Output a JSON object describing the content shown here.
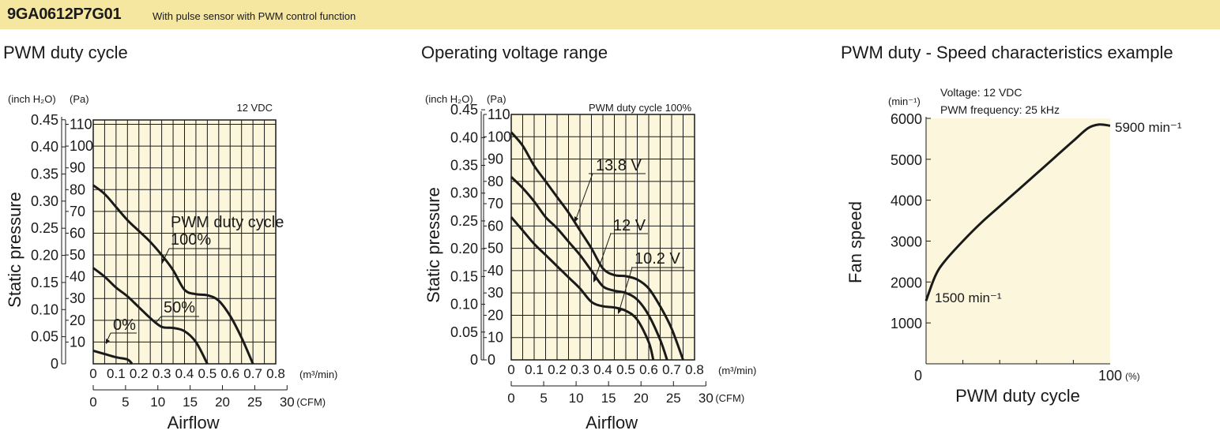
{
  "header": {
    "model": "9GA0612P7G01",
    "subtitle": "With pulse sensor with PWM control function",
    "color": "#f6e7a0"
  },
  "chart_data": [
    {
      "type": "line",
      "title": "PWM duty cycle",
      "note": "12 VDC",
      "ylabel": "Static pressure",
      "xlabel": "Airflow",
      "y_units": [
        "(inch H₂O)",
        "(Pa)"
      ],
      "x_units": [
        "(m³/min)",
        "(CFM)"
      ],
      "y_ticks_inch": [
        "0",
        "0.05",
        "0.10",
        "0.15",
        "0.20",
        "0.25",
        "0.30",
        "0.35",
        "0.40",
        "0.45"
      ],
      "y_ticks_pa": [
        "10",
        "20",
        "30",
        "40",
        "50",
        "60",
        "70",
        "80",
        "90",
        "100",
        "110"
      ],
      "x_ticks_m3": [
        "0",
        "0.1",
        "0.2",
        "0.3",
        "0.4",
        "0.5",
        "0.6",
        "0.7",
        "0.8"
      ],
      "x_ticks_cfm": [
        "0",
        "5",
        "10",
        "15",
        "20",
        "25",
        "30"
      ],
      "xlim": [
        0,
        0.8
      ],
      "ylim_pa": [
        0,
        112
      ],
      "series_labels": [
        "PWM duty cycle",
        "100%",
        "50%",
        "0%"
      ],
      "series": [
        {
          "name": "100%",
          "x": [
            0,
            0.05,
            0.1,
            0.15,
            0.2,
            0.25,
            0.3,
            0.35,
            0.4,
            0.45,
            0.5,
            0.55,
            0.6,
            0.65,
            0.7
          ],
          "y": [
            82,
            78,
            72,
            66,
            61,
            56,
            50,
            43,
            34,
            32,
            31.5,
            29,
            22,
            12,
            0
          ]
        },
        {
          "name": "50%",
          "x": [
            0,
            0.05,
            0.1,
            0.15,
            0.2,
            0.25,
            0.3,
            0.35,
            0.4,
            0.45,
            0.5
          ],
          "y": [
            44,
            40,
            35,
            31,
            26,
            21,
            17,
            16.5,
            15,
            10,
            0
          ]
        },
        {
          "name": "0%",
          "x": [
            0,
            0.05,
            0.1,
            0.15,
            0.17
          ],
          "y": [
            6,
            4.5,
            3,
            2,
            0
          ]
        }
      ]
    },
    {
      "type": "line",
      "title": "Operating voltage range",
      "note": "PWM duty cycle 100%",
      "ylabel": "Static pressure",
      "xlabel": "Airflow",
      "y_units": [
        "(inch H₂O)",
        "(Pa)"
      ],
      "x_units": [
        "(m³/min)",
        "(CFM)"
      ],
      "y_ticks_inch": [
        "0",
        "0.05",
        "0.10",
        "0.15",
        "0.20",
        "0.25",
        "0.30",
        "0.35",
        "0.40",
        "0.45"
      ],
      "y_ticks_pa": [
        "0",
        "10",
        "20",
        "30",
        "40",
        "50",
        "60",
        "70",
        "80",
        "90",
        "100",
        "110"
      ],
      "x_ticks_m3": [
        "0",
        "0.1",
        "0.2",
        "0.3",
        "0.4",
        "0.5",
        "0.6",
        "0.7",
        "0.8"
      ],
      "x_ticks_cfm": [
        "0",
        "5",
        "10",
        "15",
        "20",
        "25",
        "30"
      ],
      "xlim": [
        0,
        0.8
      ],
      "ylim_pa": [
        0,
        110
      ],
      "series_labels": [
        "13.8 V",
        "12 V",
        "10.2 V"
      ],
      "series": [
        {
          "name": "13.8 V",
          "x": [
            0,
            0.05,
            0.1,
            0.15,
            0.2,
            0.25,
            0.3,
            0.35,
            0.4,
            0.45,
            0.5,
            0.55,
            0.6,
            0.65,
            0.7,
            0.75
          ],
          "y": [
            102,
            96,
            87,
            80,
            73,
            66,
            58,
            50,
            41,
            38,
            37.5,
            36,
            32,
            24,
            14,
            0
          ]
        },
        {
          "name": "12 V",
          "x": [
            0,
            0.05,
            0.1,
            0.15,
            0.2,
            0.25,
            0.3,
            0.35,
            0.4,
            0.45,
            0.5,
            0.55,
            0.6,
            0.65,
            0.68
          ],
          "y": [
            82,
            77,
            71,
            64,
            59,
            53,
            47,
            40,
            33,
            31,
            30,
            27,
            20,
            9,
            0
          ]
        },
        {
          "name": "10.2 V",
          "x": [
            0,
            0.05,
            0.1,
            0.15,
            0.2,
            0.25,
            0.3,
            0.35,
            0.4,
            0.45,
            0.5,
            0.55,
            0.6,
            0.62
          ],
          "y": [
            64,
            58,
            52,
            47,
            42,
            37,
            32,
            26,
            24,
            23.5,
            22,
            18,
            8,
            0
          ]
        }
      ]
    },
    {
      "type": "line",
      "title": "PWM duty - Speed characteristics example",
      "note_lines": [
        "Voltage: 12 VDC",
        "PWM frequency: 25 kHz"
      ],
      "ylabel": "Fan speed",
      "xlabel": "PWM duty cycle",
      "y_unit": "(min⁻¹)",
      "x_unit": "(%)",
      "y_ticks": [
        "1000",
        "2000",
        "3000",
        "4000",
        "5000",
        "6000"
      ],
      "x_ticks": [
        "0",
        "100"
      ],
      "xlim": [
        0,
        100
      ],
      "ylim": [
        0,
        6000
      ],
      "annotations": [
        "5900 min⁻¹",
        "1500 min⁻¹"
      ],
      "series": [
        {
          "x": [
            0,
            5,
            10,
            20,
            30,
            40,
            50,
            60,
            70,
            80,
            88,
            94,
            100
          ],
          "y": [
            1540,
            2150,
            2500,
            3000,
            3450,
            3850,
            4250,
            4650,
            5050,
            5450,
            5760,
            5850,
            5820
          ]
        }
      ]
    }
  ]
}
